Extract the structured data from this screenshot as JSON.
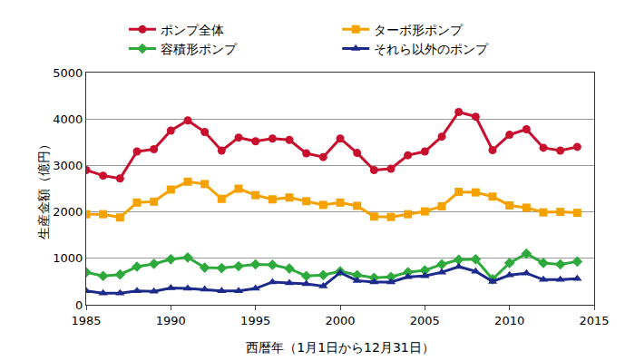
{
  "chart_data": {
    "type": "line",
    "x_label": "西暦年（1月1日から12月31日）",
    "y_label": "生産金額（億円）",
    "x": [
      1985,
      1986,
      1987,
      1988,
      1989,
      1990,
      1991,
      1992,
      1993,
      1994,
      1995,
      1996,
      1997,
      1998,
      1999,
      2000,
      2001,
      2002,
      2003,
      2004,
      2005,
      2006,
      2007,
      2008,
      2009,
      2010,
      2011,
      2012,
      2013,
      2014
    ],
    "series": [
      {
        "name": "ポンプ全体",
        "color": "#c8102e",
        "marker": "circle",
        "values": [
          2900,
          2780,
          2720,
          3300,
          3350,
          3750,
          3970,
          3720,
          3320,
          3600,
          3520,
          3580,
          3550,
          3260,
          3180,
          3580,
          3270,
          2900,
          2930,
          3220,
          3300,
          3620,
          4150,
          4050,
          3330,
          3660,
          3780,
          3380,
          3320,
          3400
        ]
      },
      {
        "name": "ターボ形ポンプ",
        "color": "#f5a100",
        "marker": "square",
        "values": [
          1950,
          1950,
          1880,
          2200,
          2220,
          2480,
          2650,
          2600,
          2280,
          2500,
          2360,
          2270,
          2310,
          2230,
          2150,
          2200,
          2130,
          1900,
          1890,
          1950,
          2010,
          2120,
          2430,
          2420,
          2330,
          2140,
          2090,
          1990,
          2000,
          1980
        ]
      },
      {
        "name": "容積形ポンプ",
        "color": "#2eaa3c",
        "marker": "diamond",
        "values": [
          700,
          620,
          650,
          820,
          880,
          980,
          1020,
          800,
          790,
          830,
          870,
          860,
          780,
          620,
          640,
          720,
          640,
          580,
          600,
          700,
          740,
          870,
          970,
          980,
          550,
          900,
          1100,
          900,
          870,
          930
        ]
      },
      {
        "name": "それら以外のポンプ",
        "color": "#1c2a8c",
        "marker": "triangle-up",
        "values": [
          300,
          250,
          250,
          300,
          290,
          360,
          350,
          330,
          300,
          300,
          350,
          490,
          470,
          450,
          400,
          690,
          520,
          490,
          490,
          600,
          620,
          700,
          820,
          720,
          500,
          640,
          680,
          540,
          540,
          560
        ]
      }
    ],
    "xlim": [
      1985,
      2015
    ],
    "xticks": [
      1985,
      1990,
      1995,
      2000,
      2005,
      2010,
      2015
    ],
    "ylim": [
      0,
      5000
    ],
    "yticks": [
      0,
      1000,
      2000,
      3000,
      4000,
      5000
    ],
    "grid": true,
    "legend": "top"
  }
}
